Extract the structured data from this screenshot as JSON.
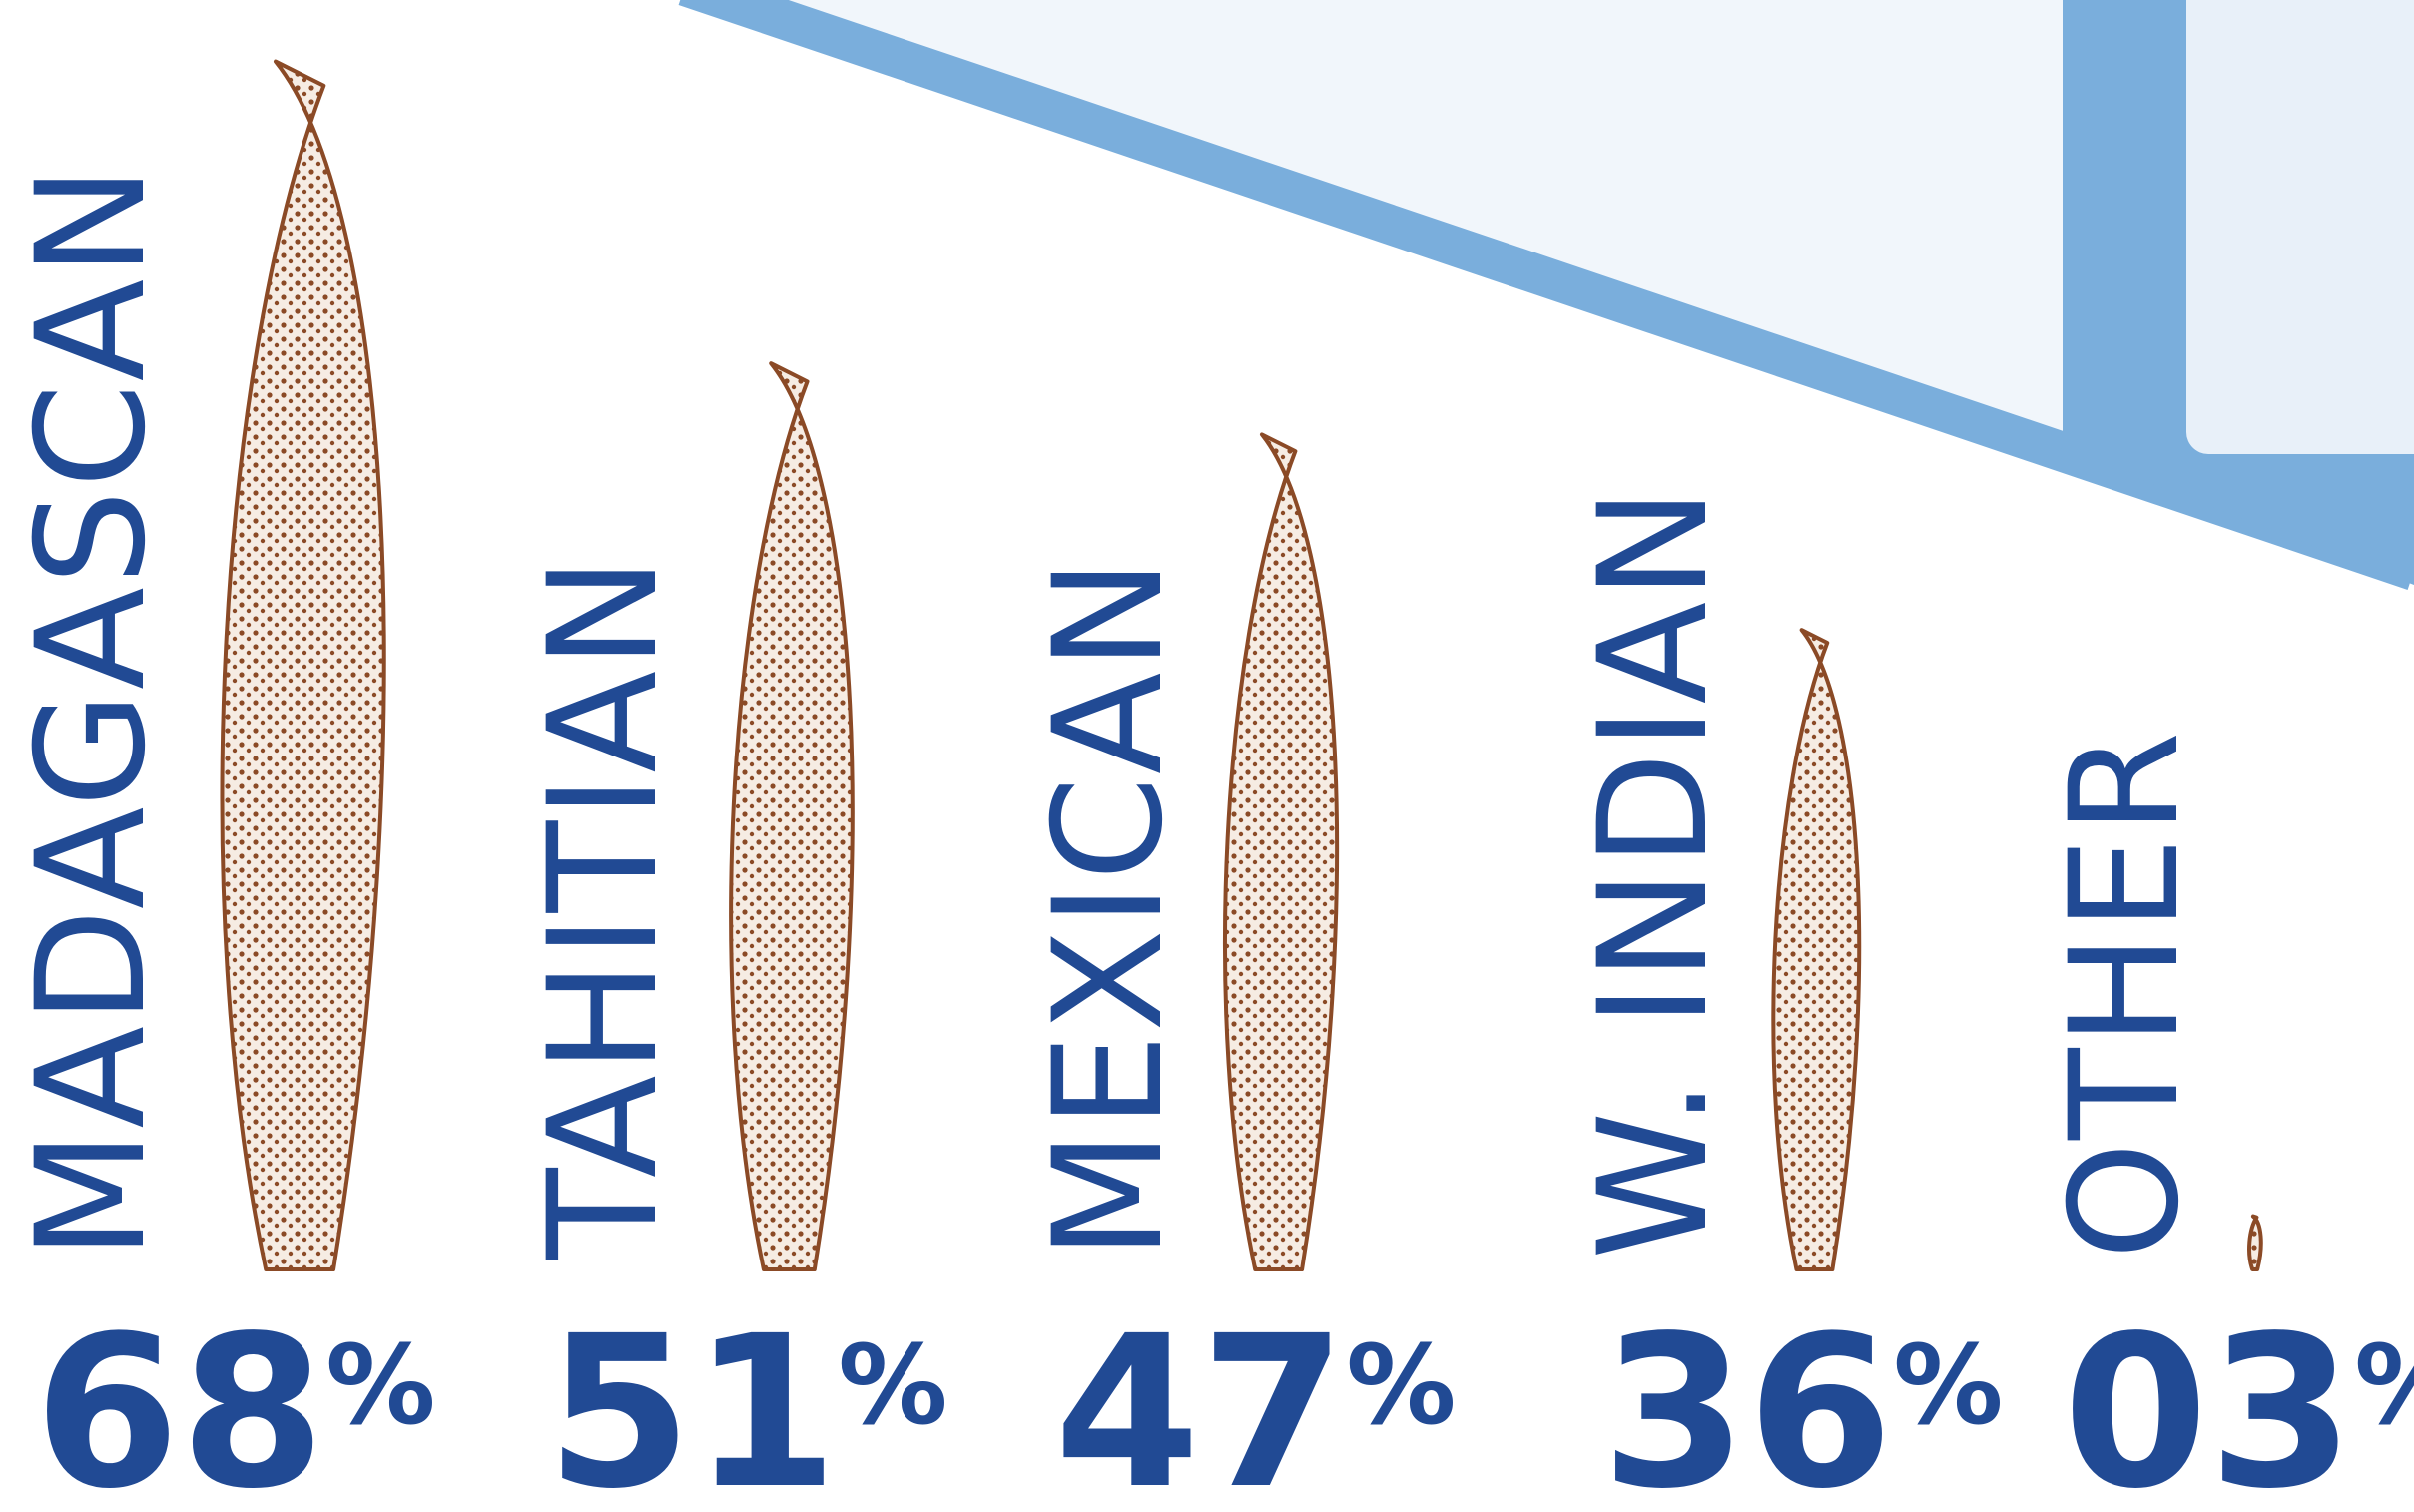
{
  "chart_data": {
    "type": "pictorial",
    "categories": [
      "MADAGASCAN",
      "TAHITIAN",
      "MEXICAN",
      "W. INDIAN",
      "OTHER"
    ],
    "values": [
      68,
      51,
      47,
      36,
      3
    ],
    "value_labels": [
      "68",
      "51",
      "47",
      "36",
      "03"
    ],
    "unit_label": "%",
    "color": "#8b4a26",
    "label_color": "#214a94"
  }
}
